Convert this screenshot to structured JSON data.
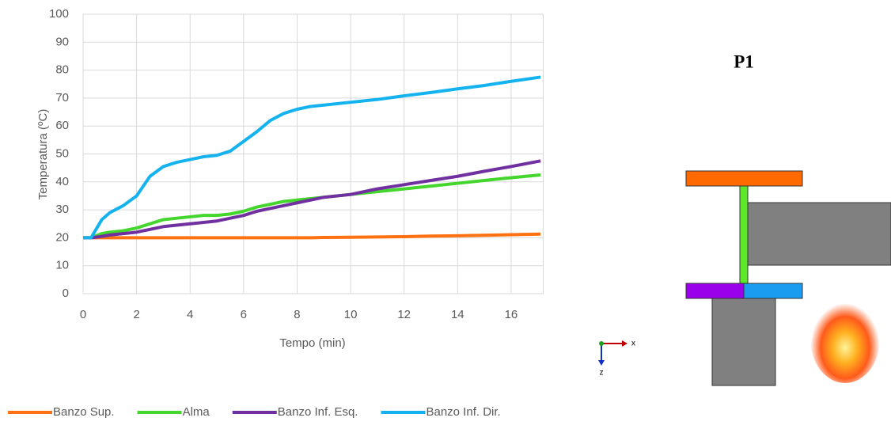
{
  "chart_data": {
    "type": "line",
    "xlabel": "Tempo (min)",
    "ylabel": "Temperatura (ºC)",
    "x": [
      0,
      0.3,
      0.7,
      1,
      1.5,
      2,
      2.5,
      3,
      3.5,
      4,
      4.5,
      5,
      5.5,
      6,
      6.5,
      7,
      7.5,
      8,
      8.5,
      9,
      10,
      11,
      12,
      13,
      14,
      15,
      16,
      17.1
    ],
    "series": [
      {
        "name": "Banzo Sup.",
        "color": "#ff7111",
        "values": [
          20,
          20,
          20,
          20,
          20,
          20,
          20,
          20,
          20,
          20,
          20,
          20,
          20,
          20,
          20,
          20,
          20,
          20,
          20,
          20.1,
          20.2,
          20.3,
          20.4,
          20.6,
          20.7,
          20.9,
          21.1,
          21.3
        ]
      },
      {
        "name": "Alma",
        "color": "#44d62c",
        "values": [
          20,
          20,
          21.5,
          22,
          22.5,
          23.5,
          25,
          26.5,
          27,
          27.5,
          28,
          28,
          28.5,
          29.5,
          31,
          32,
          33,
          33.5,
          34,
          34.5,
          35.5,
          36.5,
          37.5,
          38.5,
          39.5,
          40.5,
          41.5,
          42.5
        ]
      },
      {
        "name": "Banzo Inf. Esq.",
        "color": "#7030a0",
        "values": [
          20,
          20,
          20.5,
          21,
          21.5,
          22,
          23,
          24,
          24.5,
          25,
          25.5,
          26,
          27,
          28,
          29.5,
          30.5,
          31.5,
          32.5,
          33.5,
          34.5,
          35.5,
          37.5,
          39,
          40.5,
          42,
          43.8,
          45.5,
          47.5
        ]
      },
      {
        "name": "Banzo Inf. Dir.",
        "color": "#14b3ef",
        "values": [
          20,
          20,
          26.5,
          29,
          31.5,
          35,
          42,
          45.5,
          47,
          48,
          49,
          49.5,
          51,
          54.5,
          58,
          62,
          64.5,
          66,
          67,
          67.5,
          68.5,
          69.5,
          70.8,
          72,
          73.3,
          74.5,
          76,
          77.5
        ]
      }
    ],
    "xlim": [
      0,
      17.2
    ],
    "ylim": [
      0,
      100
    ],
    "xticks": [
      0,
      2,
      4,
      6,
      8,
      10,
      12,
      14,
      16
    ],
    "yticks": [
      0,
      10,
      20,
      30,
      40,
      50,
      60,
      70,
      80,
      90,
      100
    ],
    "grid": true,
    "legend": "bottom"
  },
  "diagram": {
    "title": "P1",
    "axes": [
      "x",
      "z"
    ]
  }
}
